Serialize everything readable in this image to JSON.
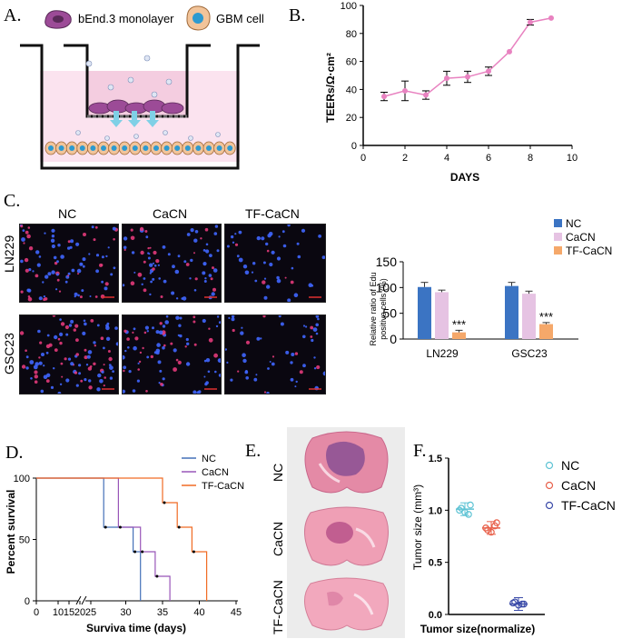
{
  "panels": {
    "a": {
      "letter": "A.",
      "legend_monolayer": "bEnd.3 monolayer",
      "legend_gbm": "GBM cell"
    },
    "b": {
      "letter": "B."
    },
    "c": {
      "letter": "C.",
      "columns": [
        "NC",
        "CaCN",
        "TF-CaCN"
      ],
      "rows": [
        "LN229",
        "GSC23"
      ]
    },
    "d": {
      "letter": "D."
    },
    "e": {
      "letter": "E.",
      "rows": [
        "NC",
        "CaCN",
        "TF-CaCN"
      ]
    },
    "f": {
      "letter": "F."
    }
  },
  "colors": {
    "pink_line": "#e882c0",
    "nc_blue": "#3b74c3",
    "cacn_pink": "#e6c3e3",
    "tf_orange": "#f5a86a",
    "km_nc": "#4470b8",
    "km_cacn": "#9855b8",
    "km_tf": "#f06b24",
    "f_nc": "#5ec3d4",
    "f_cacn": "#e8604a",
    "f_tf": "#3a4aa8"
  },
  "chart_data": [
    {
      "id": "B",
      "type": "line",
      "title": "",
      "xlabel": "DAYS",
      "ylabel": "TEERs/Ω·cm²",
      "xlim": [
        0,
        10
      ],
      "ylim": [
        0,
        100
      ],
      "xticks": [
        "0",
        "2",
        "4",
        "6",
        "8",
        "10"
      ],
      "yticks": [
        "0",
        "20",
        "40",
        "60",
        "80",
        "100"
      ],
      "x": [
        1,
        2,
        3,
        4,
        5,
        6,
        7,
        8,
        9
      ],
      "y": [
        35,
        39,
        36,
        48,
        49,
        53,
        67,
        88,
        91
      ],
      "err": [
        3,
        7,
        3,
        5,
        4,
        3,
        0,
        2,
        0
      ]
    },
    {
      "id": "C",
      "type": "bar",
      "ylabel_line1": "Relative ratio of Edu",
      "ylabel_line2": "positive cells (%)",
      "ylim": [
        0,
        150
      ],
      "yticks": [
        "0",
        "50",
        "100",
        "150"
      ],
      "categories": [
        "LN229",
        "GSC23"
      ],
      "series": [
        {
          "name": "NC",
          "values": [
            101,
            103
          ],
          "err": [
            9,
            7
          ]
        },
        {
          "name": "CaCN",
          "values": [
            91,
            88
          ],
          "err": [
            4,
            5
          ]
        },
        {
          "name": "TF-CaCN",
          "values": [
            13,
            29
          ],
          "err": [
            4,
            3
          ]
        }
      ],
      "annotations": [
        "***",
        "***"
      ]
    },
    {
      "id": "D",
      "type": "line",
      "subtype": "kaplan-meier",
      "xlabel": "Surviva time (days)",
      "ylabel": "Percent survival",
      "ylim": [
        0,
        100
      ],
      "yticks": [
        "0",
        "50",
        "100"
      ],
      "xticks": [
        "0",
        "10",
        "15",
        "20",
        "25",
        "30",
        "35",
        "40",
        "45"
      ],
      "series": [
        {
          "name": "NC",
          "steps": [
            [
              0,
              100
            ],
            [
              27,
              100
            ],
            [
              27,
              60
            ],
            [
              31,
              60
            ],
            [
              31,
              40
            ],
            [
              32,
              40
            ],
            [
              32,
              0
            ]
          ]
        },
        {
          "name": "CaCN",
          "steps": [
            [
              0,
              100
            ],
            [
              29,
              100
            ],
            [
              29,
              60
            ],
            [
              32,
              60
            ],
            [
              32,
              40
            ],
            [
              34,
              40
            ],
            [
              34,
              20
            ],
            [
              36,
              20
            ],
            [
              36,
              0
            ]
          ]
        },
        {
          "name": "TF-CaCN",
          "steps": [
            [
              0,
              100
            ],
            [
              35,
              100
            ],
            [
              35,
              80
            ],
            [
              37,
              80
            ],
            [
              37,
              60
            ],
            [
              39,
              60
            ],
            [
              39,
              40
            ],
            [
              41,
              40
            ],
            [
              41,
              0
            ]
          ]
        }
      ]
    },
    {
      "id": "F",
      "type": "scatter",
      "xlabel": "Tumor size(normalize)",
      "ylabel": "Tumor size (mm³)",
      "ylim": [
        0,
        1.5
      ],
      "yticks": [
        "0.0",
        "0.5",
        "1.0",
        "1.5"
      ],
      "series": [
        {
          "name": "NC",
          "values": [
            1.0,
            1.05,
            0.98,
            1.02,
            0.96
          ],
          "mean": 1.01
        },
        {
          "name": "CaCN",
          "values": [
            0.83,
            0.88,
            0.79,
            0.81,
            0.85
          ],
          "mean": 0.83
        },
        {
          "name": "TF-CaCN",
          "values": [
            0.11,
            0.1,
            0.09,
            0.12,
            0.1
          ],
          "mean": 0.1
        }
      ]
    }
  ]
}
